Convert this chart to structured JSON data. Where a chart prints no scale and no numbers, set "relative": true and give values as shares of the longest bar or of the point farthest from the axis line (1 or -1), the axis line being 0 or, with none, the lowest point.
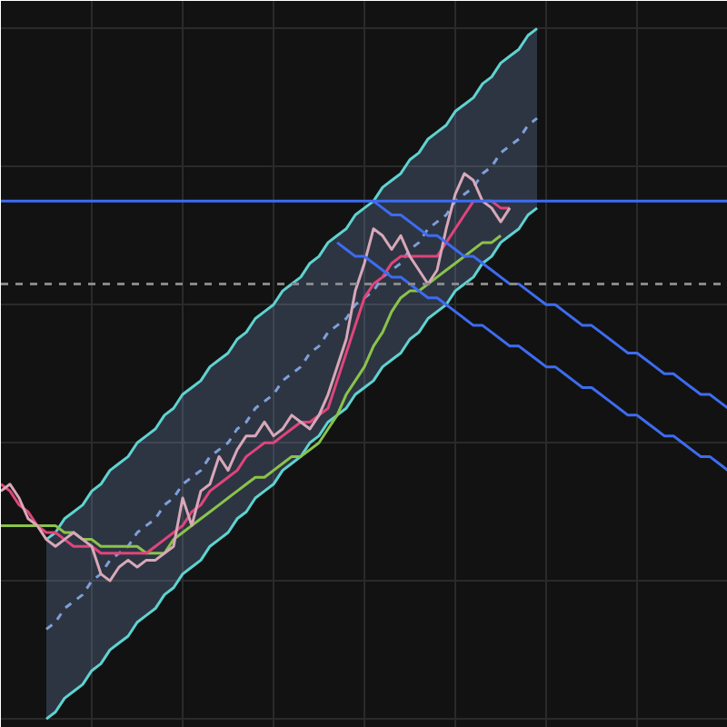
{
  "chart_data": {
    "type": "line",
    "relative": true,
    "grid": true,
    "categories": [
      null,
      null,
      null,
      null,
      null,
      null,
      null,
      null,
      null,
      null,
      null,
      null,
      null,
      null,
      null,
      null,
      null,
      null,
      null,
      null,
      null,
      null,
      null,
      null,
      null,
      null,
      null,
      null,
      null,
      null,
      null,
      null,
      null,
      null,
      null,
      null,
      null,
      null,
      null,
      null,
      null,
      null,
      null,
      null,
      null,
      null,
      null,
      null,
      null,
      null,
      null,
      null,
      null,
      null,
      null,
      null,
      null,
      null,
      null,
      null,
      null,
      null,
      null,
      null,
      null,
      null,
      null,
      null,
      null,
      null,
      null,
      null,
      null,
      null,
      null,
      null,
      null,
      null,
      null,
      null,
      null
    ],
    "series": [
      {
        "color": "#5fd3d0",
        "values": [
          null,
          null,
          null,
          null,
          null,
          0.26,
          0.27,
          0.29,
          0.3,
          0.31,
          0.33,
          0.34,
          0.36,
          0.37,
          0.38,
          0.4,
          0.41,
          0.42,
          0.44,
          0.45,
          0.47,
          0.48,
          0.49,
          0.51,
          0.52,
          0.53,
          0.55,
          0.56,
          0.58,
          0.59,
          0.6,
          0.62,
          0.63,
          0.64,
          0.66,
          0.67,
          0.69,
          0.7,
          0.71,
          0.73,
          0.74,
          0.75,
          0.77,
          0.78,
          0.79,
          0.81,
          0.82,
          0.84,
          0.85,
          0.86,
          0.88,
          0.89,
          0.9,
          0.92,
          0.93,
          0.95,
          0.96,
          0.97,
          0.99,
          1.0,
          null,
          null,
          null,
          null,
          null,
          null,
          null,
          null,
          null,
          null,
          null,
          null,
          null,
          null,
          null,
          null,
          null,
          null,
          null,
          null,
          null
        ]
      },
      {
        "color": "#5fd3d0",
        "values": [
          null,
          null,
          null,
          null,
          null,
          0.0,
          0.01,
          0.03,
          0.04,
          0.05,
          0.07,
          0.08,
          0.1,
          0.11,
          0.12,
          0.14,
          0.15,
          0.16,
          0.18,
          0.19,
          0.21,
          0.22,
          0.23,
          0.25,
          0.26,
          0.27,
          0.29,
          0.3,
          0.32,
          0.33,
          0.34,
          0.36,
          0.37,
          0.38,
          0.4,
          0.41,
          0.43,
          0.44,
          0.45,
          0.47,
          0.48,
          0.49,
          0.51,
          0.52,
          0.53,
          0.55,
          0.56,
          0.58,
          0.59,
          0.6,
          0.62,
          0.63,
          0.64,
          0.66,
          0.67,
          0.69,
          0.7,
          0.71,
          0.73,
          0.74,
          null,
          null,
          null,
          null,
          null,
          null,
          null,
          null,
          null,
          null,
          null,
          null,
          null,
          null,
          null,
          null,
          null,
          null,
          null,
          null,
          null
        ]
      },
      {
        "color": "#7f9fd8",
        "line_style": "dashed",
        "values": [
          null,
          null,
          null,
          null,
          null,
          0.13,
          0.14,
          0.16,
          0.17,
          0.18,
          0.2,
          0.21,
          0.23,
          0.24,
          0.25,
          0.27,
          0.28,
          0.29,
          0.31,
          0.32,
          0.34,
          0.35,
          0.36,
          0.38,
          0.39,
          0.4,
          0.42,
          0.43,
          0.45,
          0.46,
          0.47,
          0.49,
          0.5,
          0.51,
          0.53,
          0.54,
          0.56,
          0.57,
          0.58,
          0.6,
          0.61,
          0.62,
          0.64,
          0.65,
          0.66,
          0.68,
          0.69,
          0.71,
          0.72,
          0.73,
          0.75,
          0.76,
          0.77,
          0.79,
          0.8,
          0.82,
          0.83,
          0.84,
          0.86,
          0.87,
          null,
          null,
          null,
          null,
          null,
          null,
          null,
          null,
          null,
          null,
          null,
          null,
          null,
          null,
          null,
          null,
          null,
          null,
          null,
          null,
          null
        ],
        "lower": [
          null,
          null,
          null,
          null,
          null,
          0.0,
          0.01,
          0.03,
          0.04,
          0.05,
          0.07,
          0.08,
          0.1,
          0.11,
          0.12,
          0.14,
          0.15,
          0.16,
          0.18,
          0.19,
          0.21,
          0.22,
          0.23,
          0.25,
          0.26,
          0.27,
          0.29,
          0.3,
          0.32,
          0.33,
          0.34,
          0.36,
          0.37,
          0.38,
          0.4,
          0.41,
          0.43,
          0.44,
          0.45,
          0.47,
          0.48,
          0.49,
          0.51,
          0.52,
          0.53,
          0.55,
          0.56,
          0.58,
          0.59,
          0.6,
          0.62,
          0.63,
          0.64,
          0.66,
          0.67,
          0.69,
          0.7,
          0.71,
          0.73,
          0.74,
          null,
          null,
          null,
          null,
          null,
          null,
          null,
          null,
          null,
          null,
          null,
          null,
          null,
          null,
          null,
          null,
          null,
          null,
          null,
          null,
          null
        ],
        "upper": [
          null,
          null,
          null,
          null,
          null,
          0.26,
          0.27,
          0.29,
          0.3,
          0.31,
          0.33,
          0.34,
          0.36,
          0.37,
          0.38,
          0.4,
          0.41,
          0.42,
          0.44,
          0.45,
          0.47,
          0.48,
          0.49,
          0.51,
          0.52,
          0.53,
          0.55,
          0.56,
          0.58,
          0.59,
          0.6,
          0.62,
          0.63,
          0.64,
          0.66,
          0.67,
          0.69,
          0.7,
          0.71,
          0.73,
          0.74,
          0.75,
          0.77,
          0.78,
          0.79,
          0.81,
          0.82,
          0.84,
          0.85,
          0.86,
          0.88,
          0.89,
          0.9,
          0.92,
          0.93,
          0.95,
          0.96,
          0.97,
          0.99,
          1.0,
          null,
          null,
          null,
          null,
          null,
          null,
          null,
          null,
          null,
          null,
          null,
          null,
          null,
          null,
          null,
          null,
          null,
          null,
          null,
          null,
          null
        ]
      },
      {
        "color": "#8bc34a",
        "values": [
          0.28,
          0.28,
          0.28,
          0.28,
          0.28,
          0.28,
          0.28,
          0.27,
          0.27,
          0.26,
          0.26,
          0.25,
          0.25,
          0.25,
          0.25,
          0.25,
          0.24,
          0.24,
          0.24,
          0.26,
          0.27,
          0.28,
          0.29,
          0.3,
          0.31,
          0.32,
          0.33,
          0.34,
          0.35,
          0.35,
          0.36,
          0.37,
          0.38,
          0.38,
          0.39,
          0.4,
          0.42,
          0.44,
          0.47,
          0.49,
          0.51,
          0.54,
          0.56,
          0.59,
          0.61,
          0.62,
          0.62,
          0.63,
          0.64,
          0.65,
          0.66,
          0.67,
          0.68,
          0.69,
          0.69,
          0.7,
          null,
          null,
          null,
          null,
          null,
          null,
          null,
          null,
          null,
          null,
          null,
          null,
          null,
          null,
          null,
          null,
          null,
          null,
          null,
          null,
          null,
          null,
          null,
          null,
          null
        ]
      },
      {
        "color": "#e0457b",
        "values": [
          0.34,
          0.33,
          0.31,
          0.3,
          0.28,
          0.27,
          0.27,
          0.26,
          0.25,
          0.25,
          0.25,
          0.24,
          0.24,
          0.24,
          0.24,
          0.24,
          0.24,
          0.25,
          0.26,
          0.27,
          0.28,
          0.3,
          0.31,
          0.33,
          0.34,
          0.35,
          0.36,
          0.38,
          0.39,
          0.4,
          0.4,
          0.41,
          0.42,
          0.43,
          0.43,
          0.44,
          0.45,
          0.49,
          0.53,
          0.57,
          0.61,
          0.63,
          0.64,
          0.66,
          0.67,
          0.67,
          0.67,
          0.67,
          0.67,
          0.69,
          0.71,
          0.73,
          0.75,
          0.75,
          0.75,
          0.74,
          0.74,
          null,
          null,
          null,
          null,
          null,
          null,
          null,
          null,
          null,
          null,
          null,
          null,
          null,
          null,
          null,
          null,
          null,
          null,
          null,
          null,
          null,
          null,
          null,
          null
        ]
      },
      {
        "color": "#d8a8b8",
        "values": [
          0.33,
          0.34,
          0.32,
          0.29,
          0.28,
          0.26,
          0.25,
          0.26,
          0.27,
          0.26,
          0.25,
          0.21,
          0.2,
          0.22,
          0.23,
          0.22,
          0.23,
          0.23,
          0.24,
          0.25,
          0.32,
          0.28,
          0.33,
          0.34,
          0.38,
          0.36,
          0.39,
          0.41,
          0.41,
          0.43,
          0.41,
          0.42,
          0.44,
          0.43,
          0.42,
          0.44,
          0.47,
          0.51,
          0.55,
          0.62,
          0.66,
          0.71,
          0.7,
          0.68,
          0.7,
          0.67,
          0.65,
          0.63,
          0.65,
          0.71,
          0.76,
          0.79,
          0.78,
          0.75,
          0.74,
          0.72,
          0.74,
          null,
          null,
          null,
          null,
          null,
          null,
          null,
          null,
          null,
          null,
          null,
          null,
          null,
          null,
          null,
          null,
          null,
          null,
          null,
          null,
          null,
          null,
          null,
          null
        ]
      },
      {
        "color": "#3d6cf0",
        "values": [
          null,
          null,
          null,
          null,
          null,
          null,
          null,
          null,
          null,
          null,
          null,
          null,
          null,
          null,
          null,
          null,
          null,
          null,
          null,
          null,
          null,
          null,
          null,
          null,
          null,
          null,
          null,
          null,
          null,
          null,
          null,
          null,
          null,
          null,
          null,
          null,
          null,
          null,
          null,
          null,
          null,
          0.75,
          0.74,
          0.73,
          0.73,
          0.72,
          0.71,
          0.7,
          0.7,
          0.69,
          0.68,
          0.67,
          0.67,
          0.66,
          0.65,
          0.64,
          0.63,
          0.63,
          0.62,
          0.61,
          0.6,
          0.6,
          0.59,
          0.58,
          0.57,
          0.57,
          0.56,
          0.55,
          0.54,
          0.53,
          0.53,
          0.52,
          0.51,
          0.5,
          0.5,
          0.49,
          0.48,
          0.47,
          0.47,
          0.46,
          0.45
        ]
      },
      {
        "color": "#3d6cf0",
        "values": [
          null,
          null,
          null,
          null,
          null,
          null,
          null,
          null,
          null,
          null,
          null,
          null,
          null,
          null,
          null,
          null,
          null,
          null,
          null,
          null,
          null,
          null,
          null,
          null,
          null,
          null,
          null,
          null,
          null,
          null,
          null,
          null,
          null,
          null,
          null,
          null,
          null,
          0.69,
          0.68,
          0.67,
          0.67,
          0.66,
          0.65,
          0.64,
          0.64,
          0.63,
          0.62,
          0.61,
          0.61,
          0.6,
          0.59,
          0.58,
          0.57,
          0.57,
          0.56,
          0.55,
          0.54,
          0.54,
          0.53,
          0.52,
          0.51,
          0.51,
          0.5,
          0.49,
          0.48,
          0.48,
          0.47,
          0.46,
          0.45,
          0.44,
          0.44,
          0.43,
          0.42,
          0.41,
          0.41,
          0.4,
          0.39,
          0.38,
          0.38,
          0.37,
          0.36
        ]
      }
    ],
    "ref_lines": [
      {
        "axis": "y",
        "value": 0.75,
        "color": "#3d6cf0",
        "line_style": "solid"
      },
      {
        "axis": "y",
        "value": 0.63,
        "color": "#888888",
        "line_style": "dashed"
      }
    ]
  }
}
